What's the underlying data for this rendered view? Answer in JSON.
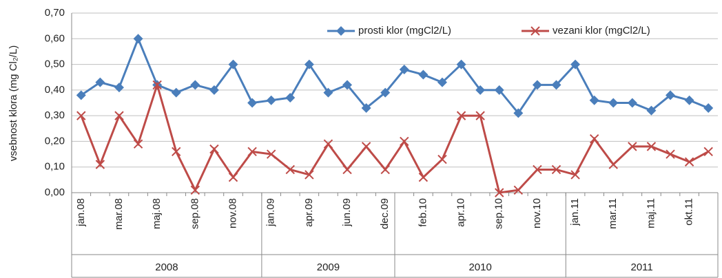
{
  "chart_data": {
    "type": "line",
    "y_label": "vsebnost klora (mg Cl₂/L)",
    "categories": [
      "jan.08",
      null,
      "mar.08",
      null,
      "maj.08",
      null,
      "sep.08",
      null,
      "nov.08",
      null,
      "jan.09",
      null,
      "apr.09",
      null,
      "jun.09",
      null,
      "dec.09",
      null,
      "feb.10",
      null,
      "apr.10",
      null,
      "sep.10",
      null,
      "nov.10",
      null,
      "jan.11",
      null,
      "mar.11",
      null,
      "maj.11",
      null,
      "okt.11",
      null
    ],
    "groups": [
      "2008",
      "2009",
      "2010",
      "2011"
    ],
    "series": [
      {
        "name": "prosti klor (mgCl2/L)",
        "color": "#4a7ebb",
        "marker": "diamond",
        "values": [
          0.38,
          0.43,
          0.41,
          0.6,
          0.42,
          0.39,
          0.42,
          0.4,
          0.5,
          0.35,
          0.36,
          0.37,
          0.5,
          0.39,
          0.42,
          0.33,
          0.39,
          0.48,
          0.46,
          0.43,
          0.5,
          0.4,
          0.4,
          0.31,
          0.42,
          0.42,
          0.5,
          0.36,
          0.35,
          0.35,
          0.32,
          0.38,
          0.36,
          0.33
        ]
      },
      {
        "name": "vezani klor (mgCl2/L)",
        "color": "#be4b48",
        "marker": "x",
        "values": [
          0.3,
          0.11,
          0.3,
          0.19,
          0.42,
          0.16,
          0.01,
          0.17,
          0.06,
          0.16,
          0.15,
          0.09,
          0.07,
          0.19,
          0.09,
          0.18,
          0.09,
          0.2,
          0.06,
          0.13,
          0.3,
          0.3,
          0.0,
          0.01,
          0.09,
          0.09,
          0.07,
          0.21,
          0.11,
          0.18,
          0.18,
          0.15,
          0.12,
          0.16
        ]
      }
    ],
    "ylim": [
      0,
      0.7
    ],
    "yticks": [
      {
        "value": 0,
        "label": "0,00"
      },
      {
        "value": 0.1,
        "label": "0,10"
      },
      {
        "value": 0.2,
        "label": "0,20"
      },
      {
        "value": 0.3,
        "label": "0,30"
      },
      {
        "value": 0.4,
        "label": "0,40"
      },
      {
        "value": 0.5,
        "label": "0,50"
      },
      {
        "value": 0.6,
        "label": "0,60"
      },
      {
        "value": 0.7,
        "label": "0,70"
      }
    ],
    "grid": true,
    "legend": "top"
  }
}
